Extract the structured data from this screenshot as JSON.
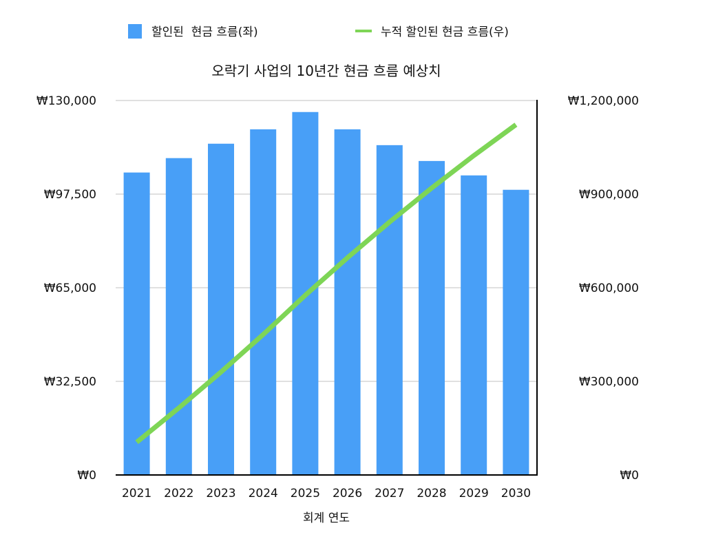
{
  "chart_data": {
    "type": "bar+line",
    "title": "오락기 사업의 10년간 현금 흐름 예상치",
    "xlabel": "회계 연도",
    "categories": [
      "2021",
      "2022",
      "2023",
      "2024",
      "2025",
      "2026",
      "2027",
      "2028",
      "2029",
      "2030"
    ],
    "series": [
      {
        "name": "할인된  현금 흐름(좌)",
        "type": "bar",
        "axis": "left",
        "color": "#489ff7",
        "values": [
          105000,
          110000,
          115000,
          120000,
          126000,
          120000,
          114500,
          109000,
          104000,
          99000
        ]
      },
      {
        "name": "누적 할인된 현금 흐름(우)",
        "type": "line",
        "axis": "right",
        "color": "#7ed556",
        "values": [
          105000,
          215000,
          330000,
          450000,
          576000,
          696000,
          810500,
          919500,
          1023500,
          1122500
        ]
      }
    ],
    "left_axis": {
      "ylim": [
        0,
        130000
      ],
      "ticks": [
        "₩0",
        "₩32,500",
        "₩65,000",
        "₩97,500",
        "₩130,000"
      ]
    },
    "right_axis": {
      "ylim": [
        0,
        1200000
      ],
      "ticks": [
        "₩0",
        "₩300,000",
        "₩600,000",
        "₩900,000",
        "₩1,200,000"
      ]
    },
    "grid": true,
    "legend": "top"
  }
}
